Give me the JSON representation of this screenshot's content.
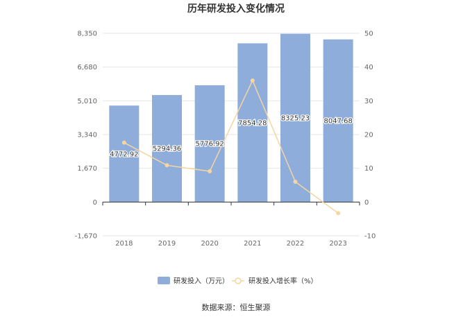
{
  "chart_data": {
    "type": "bar",
    "title": "历年研发投入变化情况",
    "categories": [
      "2018",
      "2019",
      "2020",
      "2021",
      "2022",
      "2023"
    ],
    "series": [
      {
        "name": "研发投入（万元）",
        "type": "bar",
        "axis": "left",
        "values": [
          4772.92,
          5294.36,
          5776.92,
          7854.28,
          8325.23,
          8047.68
        ],
        "labels": [
          "4772.92",
          "5294.36",
          "5776.92",
          "7854.28",
          "8325.23",
          "8047.68"
        ],
        "color": "#8eaddb"
      },
      {
        "name": "研发投入增长率（%）",
        "type": "line",
        "axis": "right",
        "values": [
          17.6,
          10.9,
          9.1,
          36.0,
          6.0,
          -3.3
        ],
        "color": "#f5d5a1"
      }
    ],
    "y_left": {
      "ylim": [
        -1670,
        8350
      ],
      "ticks": [
        8350,
        6680,
        5010,
        3340,
        1670,
        0,
        -1670
      ],
      "tick_labels": [
        "8,350",
        "6,680",
        "5,010",
        "3,340",
        "1,670",
        "0",
        "-1,670"
      ]
    },
    "y_right": {
      "ylim": [
        -10,
        50
      ],
      "ticks": [
        50,
        40,
        30,
        20,
        10,
        0,
        -10
      ],
      "tick_labels": [
        "50",
        "40",
        "30",
        "20",
        "10",
        "0",
        "-10"
      ]
    },
    "grid": true,
    "legend": "bottom",
    "source": "数据来源：恒生聚源"
  }
}
